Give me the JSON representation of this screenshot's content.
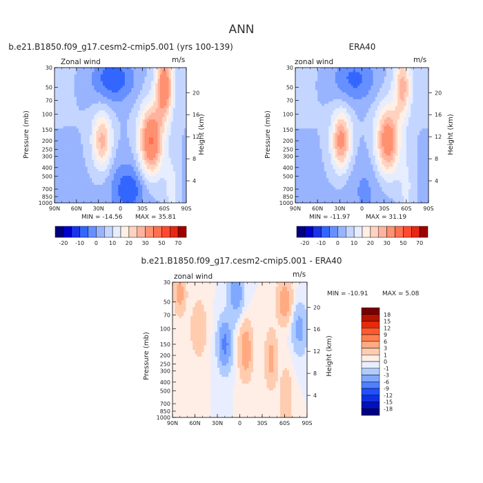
{
  "title": "ANN",
  "chart_data": [
    {
      "type": "heatmap",
      "title": "b.e21.B1850.f09_g17.cesm2-cmip5.001 (yrs 100-139)",
      "variable_label": "Zonal wind",
      "units": "m/s",
      "ylabel": "Pressure (mb)",
      "ylabel_right": "Height (km)",
      "x_tick_labels": [
        "90N",
        "60N",
        "30N",
        "0",
        "30S",
        "60S",
        "90S"
      ],
      "x_tick_values": [
        90,
        60,
        30,
        0,
        -30,
        -60,
        -90
      ],
      "y_tick_labels": [
        "30",
        "50",
        "70",
        "100",
        "150",
        "200",
        "250",
        "300",
        "400",
        "500",
        "700",
        "850",
        "1000"
      ],
      "y_tick_values": [
        30,
        50,
        70,
        100,
        150,
        200,
        250,
        300,
        400,
        500,
        700,
        850,
        1000
      ],
      "height_tick_labels": [
        "4",
        "8",
        "12",
        "16",
        "20"
      ],
      "height_tick_values": [
        4,
        8,
        12,
        16,
        20
      ],
      "y_scale": "log",
      "min_label": "MIN = -14.56",
      "max_label": "MAX =  35.81",
      "min": -14.56,
      "max": 35.81,
      "colorbar_labels": [
        "-20",
        "-10",
        "0",
        "10",
        "20",
        "30",
        "50",
        "70"
      ],
      "features": [
        {
          "lat": 25,
          "p": 200,
          "u": 22,
          "rx": 13,
          "ry": 0.42
        },
        {
          "lat": -42,
          "p": 200,
          "u": 35.8,
          "rx": 16,
          "ry": 0.5
        },
        {
          "lat": -60,
          "p": 50,
          "u": 33,
          "rx": 11,
          "ry": 0.45
        },
        {
          "lat": 10,
          "p": 40,
          "u": -14.5,
          "rx": 30,
          "ry": 0.35
        },
        {
          "lat": -5,
          "p": 700,
          "u": -6,
          "rx": 25,
          "ry": 0.5
        },
        {
          "lat": 75,
          "p": 850,
          "u": -3,
          "rx": 15,
          "ry": 0.4
        },
        {
          "lat": -15,
          "p": 700,
          "u": -8,
          "rx": 20,
          "ry": 0.3
        },
        {
          "lat": -70,
          "p": 700,
          "u": 8,
          "rx": 10,
          "ry": 0.5
        }
      ]
    },
    {
      "type": "heatmap",
      "title": "ERA40",
      "variable_label": "zonal wind",
      "units": "m/s",
      "ylabel": "Pressure (mb)",
      "ylabel_right": "Height (km)",
      "x_tick_labels": [
        "90N",
        "60N",
        "30N",
        "0",
        "30S",
        "60S",
        "90S"
      ],
      "x_tick_values": [
        90,
        60,
        30,
        0,
        -30,
        -60,
        -90
      ],
      "y_tick_labels": [
        "30",
        "50",
        "70",
        "100",
        "150",
        "200",
        "250",
        "300",
        "400",
        "500",
        "700",
        "850",
        "1000"
      ],
      "y_tick_values": [
        30,
        50,
        70,
        100,
        150,
        200,
        250,
        300,
        400,
        500,
        700,
        850,
        1000
      ],
      "height_tick_labels": [
        "4",
        "8",
        "12",
        "16",
        "20"
      ],
      "height_tick_values": [
        4,
        8,
        12,
        16,
        20
      ],
      "y_scale": "log",
      "min_label": "MIN = -11.97",
      "max_label": "MAX =  31.19",
      "min": -11.97,
      "max": 31.19,
      "colorbar_labels": [
        "-20",
        "-10",
        "0",
        "10",
        "20",
        "30",
        "50",
        "70"
      ],
      "features": [
        {
          "lat": 28,
          "p": 200,
          "u": 28,
          "rx": 13,
          "ry": 0.42
        },
        {
          "lat": -35,
          "p": 200,
          "u": 31.2,
          "rx": 16,
          "ry": 0.5
        },
        {
          "lat": -55,
          "p": 50,
          "u": 22,
          "rx": 11,
          "ry": 0.45
        },
        {
          "lat": 10,
          "p": 40,
          "u": -12,
          "rx": 30,
          "ry": 0.35
        },
        {
          "lat": -5,
          "p": 700,
          "u": -5,
          "rx": 25,
          "ry": 0.5
        },
        {
          "lat": -60,
          "p": 700,
          "u": 7,
          "rx": 10,
          "ry": 0.5
        }
      ]
    },
    {
      "type": "heatmap",
      "title": "b.e21.B1850.f09_g17.cesm2-cmip5.001 - ERA40",
      "variable_label": "zonal wind",
      "units": "m/s",
      "ylabel": "Pressure (mb)",
      "ylabel_right": "Height (km)",
      "x_tick_labels": [
        "90N",
        "60N",
        "30N",
        "0",
        "30S",
        "60S",
        "90S"
      ],
      "x_tick_values": [
        90,
        60,
        30,
        0,
        -30,
        -60,
        -90
      ],
      "y_tick_labels": [
        "30",
        "50",
        "70",
        "100",
        "150",
        "200",
        "250",
        "300",
        "400",
        "500",
        "700",
        "850",
        "1000"
      ],
      "y_tick_values": [
        30,
        50,
        70,
        100,
        150,
        200,
        250,
        300,
        400,
        500,
        700,
        850,
        1000
      ],
      "height_tick_labels": [
        "4",
        "8",
        "12",
        "16",
        "20"
      ],
      "height_tick_values": [
        4,
        8,
        12,
        16,
        20
      ],
      "y_scale": "log",
      "min_label": "MIN = -10.91",
      "max_label": "MAX =   5.08",
      "min": -10.91,
      "max": 5.08,
      "colorbar_labels": [
        "18",
        "15",
        "12",
        "9",
        "6",
        "3",
        "1",
        "0",
        "-1",
        "-3",
        "-6",
        "-9",
        "-12",
        "-15",
        "-18"
      ],
      "features": [
        {
          "lat": 80,
          "p": 40,
          "u": 4,
          "rx": 8,
          "ry": 0.3
        },
        {
          "lat": 20,
          "p": 150,
          "u": -7,
          "rx": 9,
          "ry": 0.35
        },
        {
          "lat": 5,
          "p": 40,
          "u": -5,
          "rx": 10,
          "ry": 0.35
        },
        {
          "lat": -8,
          "p": 175,
          "u": 5,
          "rx": 9,
          "ry": 0.4
        },
        {
          "lat": -42,
          "p": 220,
          "u": 4,
          "rx": 8,
          "ry": 0.4
        },
        {
          "lat": -60,
          "p": 50,
          "u": 5.08,
          "rx": 10,
          "ry": 0.3
        },
        {
          "lat": -62,
          "p": 700,
          "u": 3,
          "rx": 8,
          "ry": 0.5
        },
        {
          "lat": 55,
          "p": 100,
          "u": 3,
          "rx": 10,
          "ry": 0.4
        },
        {
          "lat": -80,
          "p": 100,
          "u": -4,
          "rx": 10,
          "ry": 0.35
        }
      ]
    }
  ],
  "colors": {
    "absolute": [
      "#000080",
      "#0000cd",
      "#1a33e6",
      "#3366ff",
      "#6690ff",
      "#99b4ff",
      "#c4d6ff",
      "#e6edff",
      "#fff0e6",
      "#ffd2bf",
      "#ffb39e",
      "#ff9070",
      "#ff7050",
      "#ff4a30",
      "#e62814",
      "#a00000"
    ],
    "difference": [
      "#000080",
      "#0010c0",
      "#1030e0",
      "#2050ff",
      "#5080ff",
      "#80a8ff",
      "#b0ccff",
      "#e8eeff",
      "#ffeee6",
      "#ffccb0",
      "#ffaa80",
      "#ff7f50",
      "#ff5a30",
      "#e62a0a",
      "#b41400",
      "#780000"
    ]
  }
}
